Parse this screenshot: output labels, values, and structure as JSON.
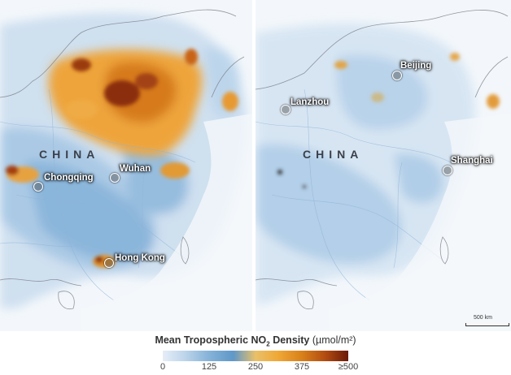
{
  "panels": {
    "left": {
      "country": "CHINA",
      "cities": [
        "Chongqing",
        "Wuhan",
        "Hong Kong"
      ]
    },
    "right": {
      "country": "CHINA",
      "cities": [
        "Beijing",
        "Lanzhou",
        "Shanghai"
      ]
    }
  },
  "scale_bar": "500 km",
  "legend": {
    "title_main": "Mean Tropospheric NO",
    "title_sub": "2",
    "title_rest": " Density ",
    "unit": "(µmol/m²)",
    "ticks": [
      "0",
      "125",
      "250",
      "375",
      "≥500"
    ],
    "colors": [
      "#e6eef7",
      "#85b2d8",
      "#5f98c9",
      "#f0a836",
      "#d9801a",
      "#b14a10",
      "#6a1a08"
    ]
  }
}
